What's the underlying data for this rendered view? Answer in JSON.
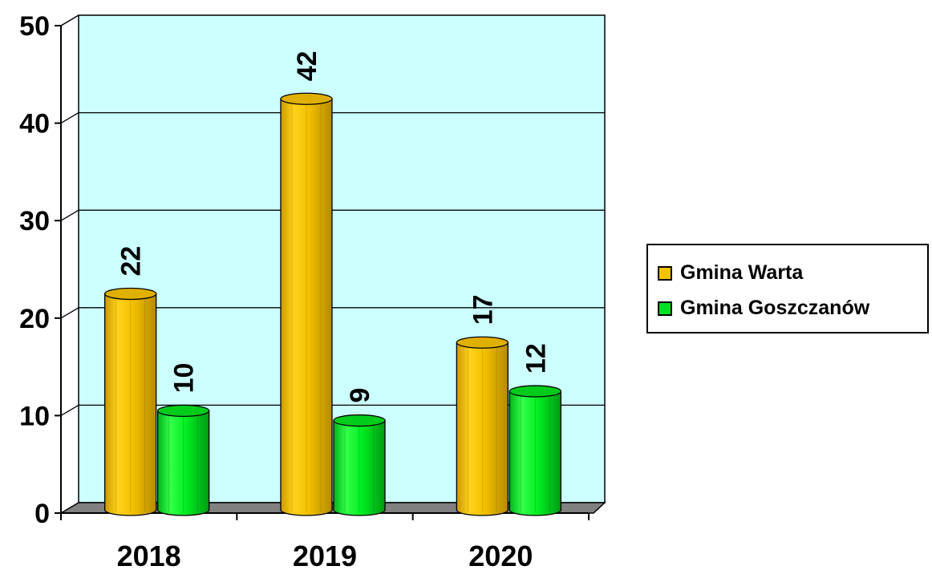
{
  "chart_data": {
    "type": "bar",
    "categories": [
      "2018",
      "2019",
      "2020"
    ],
    "series": [
      {
        "name": "Gmina Warta",
        "values": [
          22,
          42,
          17
        ],
        "color": "#F5C400"
      },
      {
        "name": "Gmina Goszczanów",
        "values": [
          10,
          9,
          12
        ],
        "color": "#00E020"
      }
    ],
    "ylim": [
      0,
      50
    ],
    "yticks": [
      "0",
      "10",
      "20",
      "30",
      "40",
      "50"
    ],
    "grid": true,
    "legend_position": "right",
    "plot_background": "#CCFFFF",
    "floor_color": "#808080"
  }
}
